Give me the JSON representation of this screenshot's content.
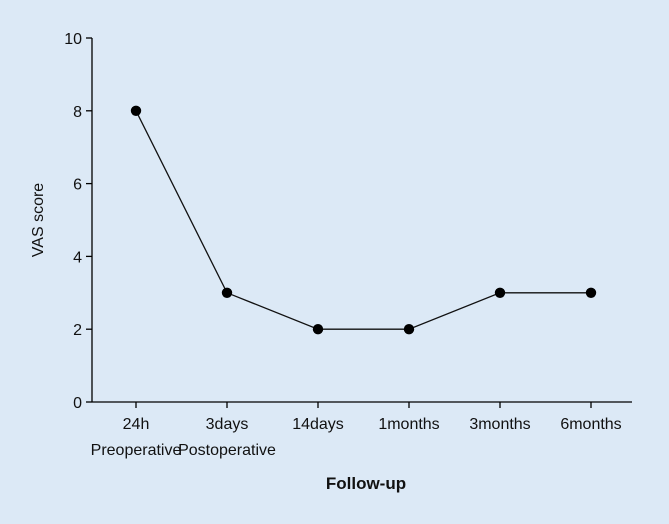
{
  "chart_data": {
    "type": "line",
    "title": "",
    "xlabel": "Follow-up",
    "ylabel": "VAS score",
    "ylim": [
      0,
      10
    ],
    "yticks": [
      0,
      2,
      4,
      6,
      8,
      10
    ],
    "categories": [
      "24h",
      "3days",
      "14days",
      "1months",
      "3months",
      "6months"
    ],
    "group_labels": [
      {
        "text": "Preoperative",
        "under": "24h"
      },
      {
        "text": "Postoperative",
        "under": "3days"
      }
    ],
    "series": [
      {
        "values": [
          8,
          3,
          2,
          2,
          3,
          3
        ]
      }
    ],
    "grid": false,
    "legend": "none",
    "colors": {
      "background": "#dce9f6",
      "line": "#111111",
      "marker": "#000000"
    }
  }
}
